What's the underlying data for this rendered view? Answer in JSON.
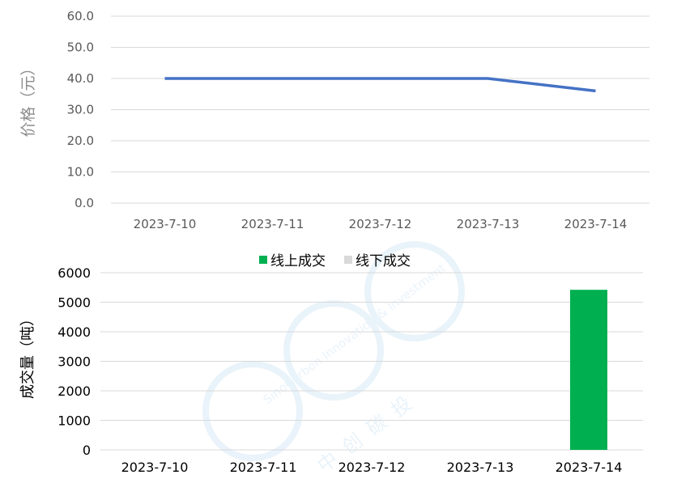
{
  "chart_data": [
    {
      "type": "line",
      "ylabel": "价格（元）",
      "x": [
        "2023-7-10",
        "2023-7-11",
        "2023-7-12",
        "2023-7-13",
        "2023-7-14"
      ],
      "y_ticks": [
        "0.0",
        "10.0",
        "20.0",
        "30.0",
        "40.0",
        "50.0",
        "60.0"
      ],
      "ylim": [
        0,
        60
      ],
      "grid": true,
      "series": [
        {
          "values": [
            40.0,
            40.0,
            40.0,
            40.0,
            36.0
          ],
          "color": "#4472c4"
        }
      ]
    },
    {
      "type": "bar",
      "ylabel": "成交量（吨）",
      "categories": [
        "2023-7-10",
        "2023-7-11",
        "2023-7-12",
        "2023-7-13",
        "2023-7-14"
      ],
      "y_ticks": [
        "0",
        "1000",
        "2000",
        "3000",
        "4000",
        "5000",
        "6000"
      ],
      "ylim": [
        0,
        6000
      ],
      "grid": true,
      "legend": "top-center",
      "series": [
        {
          "name": "线上成交",
          "values": [
            0,
            0,
            0,
            0,
            5420
          ],
          "color": "#00b050"
        },
        {
          "name": "线下成交",
          "values": [
            0,
            0,
            0,
            0,
            0
          ],
          "color": "#d9d9d9"
        }
      ]
    }
  ],
  "watermark": {
    "brand_en": "SinoCarbon Innovation & Investment",
    "brand_cn": "中创碳投",
    "color": "#5aa6e0"
  }
}
